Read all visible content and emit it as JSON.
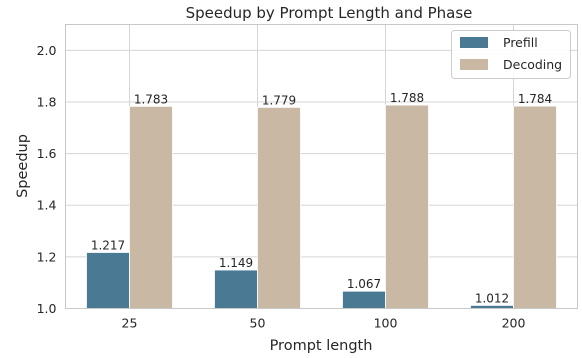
{
  "chart_data": {
    "type": "bar",
    "title": "Speedup by Prompt Length and Phase",
    "xlabel": "Prompt length",
    "ylabel": "Speedup",
    "categories": [
      "25",
      "50",
      "100",
      "200"
    ],
    "series": [
      {
        "name": "Prefill",
        "values": [
          1.217,
          1.149,
          1.067,
          1.012
        ],
        "labels": [
          "1.217",
          "1.149",
          "1.067",
          "1.012"
        ],
        "color": "#4a7a93"
      },
      {
        "name": "Decoding",
        "values": [
          1.783,
          1.779,
          1.788,
          1.784
        ],
        "labels": [
          "1.783",
          "1.779",
          "1.788",
          "1.784"
        ],
        "color": "#c9b8a4"
      }
    ],
    "ylim": [
      1.0,
      2.1
    ],
    "yticks": [
      1.0,
      1.2,
      1.4,
      1.6,
      1.8,
      2.0
    ],
    "ytick_labels": [
      "1.0",
      "1.2",
      "1.4",
      "1.6",
      "1.8",
      "2.0"
    ],
    "grid": true,
    "legend_position": "top-right"
  }
}
